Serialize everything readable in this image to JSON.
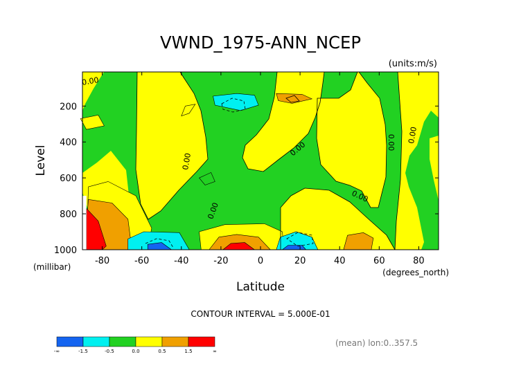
{
  "chart_data": {
    "type": "contour",
    "title": "VWND_1975-ANN_NCEP",
    "units": "(units:m/s)",
    "xlabel": "Latitude",
    "ylabel": "Level",
    "x_units": "(degrees_north)",
    "y_units": "(millibar)",
    "xlim": [
      -90,
      90
    ],
    "ylim": [
      1000,
      10
    ],
    "y_reversed": true,
    "x_ticks": [
      {
        "value": -80,
        "label": "-80"
      },
      {
        "value": -60,
        "label": "-60"
      },
      {
        "value": -40,
        "label": "-40"
      },
      {
        "value": -20,
        "label": "-20"
      },
      {
        "value": 0,
        "label": "0"
      },
      {
        "value": 20,
        "label": "20"
      },
      {
        "value": 40,
        "label": "40"
      },
      {
        "value": 60,
        "label": "60"
      },
      {
        "value": 80,
        "label": "80"
      }
    ],
    "y_ticks": [
      {
        "value": 200,
        "label": "200"
      },
      {
        "value": 400,
        "label": "400"
      },
      {
        "value": 600,
        "label": "600"
      },
      {
        "value": 800,
        "label": "800"
      },
      {
        "value": 1000,
        "label": "1000"
      }
    ],
    "contour_interval_text": "CONTOUR INTERVAL = 5.000E-01",
    "footer_text": "(mean) lon:0..357.5",
    "contour_label": "0.00",
    "colorbar": {
      "levels": [
        "-∞",
        "-1.5",
        "-0.5",
        "0.0",
        "0.5",
        "1.5",
        "∞"
      ],
      "colors": [
        "#1464f0",
        "#00f0f0",
        "#22d122",
        "#ffff00",
        "#f0a000",
        "#ff0000"
      ]
    },
    "regions": [
      {
        "level": "yellow",
        "points": [
          [
            -38,
            200
          ],
          [
            -33,
            190
          ],
          [
            -36,
            240
          ],
          [
            -40,
            255
          ]
        ]
      },
      {
        "level": "cyan",
        "points": [
          [
            -12,
            130
          ],
          [
            -24,
            145
          ],
          [
            -23,
            195
          ],
          [
            -10,
            225
          ],
          [
            -1,
            195
          ],
          [
            -3,
            140
          ]
        ]
      },
      {
        "level": "orange",
        "points": [
          [
            8,
            130
          ],
          [
            21,
            135
          ],
          [
            26,
            160
          ],
          [
            16,
            185
          ],
          [
            9,
            170
          ]
        ]
      },
      {
        "level": "yellow",
        "points": [
          [
            -91,
            270
          ],
          [
            -82,
            250
          ],
          [
            -79,
            310
          ],
          [
            -88,
            330
          ]
        ]
      },
      {
        "level": "yellow",
        "points": [
          [
            -87,
            650
          ],
          [
            -77,
            620
          ],
          [
            -63,
            700
          ],
          [
            -55,
            880
          ],
          [
            -57,
            1000
          ],
          [
            -88,
            1000
          ]
        ]
      },
      {
        "level": "orange",
        "points": [
          [
            -87,
            720
          ],
          [
            -75,
            740
          ],
          [
            -67,
            830
          ],
          [
            -65,
            1000
          ],
          [
            -89,
            1000
          ]
        ]
      },
      {
        "level": "red",
        "points": [
          [
            -88,
            770
          ],
          [
            -82,
            840
          ],
          [
            -78,
            980
          ],
          [
            -80,
            1000
          ],
          [
            -88,
            1000
          ]
        ]
      },
      {
        "level": "cyan",
        "points": [
          [
            -67,
            940
          ],
          [
            -59,
            900
          ],
          [
            -41,
            905
          ],
          [
            -36,
            1000
          ],
          [
            -67,
            1000
          ]
        ]
      },
      {
        "level": "blue",
        "points": [
          [
            -57,
            970
          ],
          [
            -50,
            960
          ],
          [
            -45,
            1000
          ],
          [
            -57,
            1000
          ]
        ]
      },
      {
        "level": "yellow",
        "points": [
          [
            -30,
            1000
          ],
          [
            -31,
            900
          ],
          [
            -18,
            860
          ],
          [
            2,
            855
          ],
          [
            11,
            900
          ],
          [
            12,
            1000
          ]
        ]
      },
      {
        "level": "orange",
        "points": [
          [
            -26,
            1000
          ],
          [
            -21,
            930
          ],
          [
            -12,
            915
          ],
          [
            -1,
            930
          ],
          [
            5,
            1000
          ]
        ]
      },
      {
        "level": "red",
        "points": [
          [
            -19,
            1000
          ],
          [
            -15,
            965
          ],
          [
            -8,
            960
          ],
          [
            -3,
            1000
          ]
        ]
      },
      {
        "level": "cyan",
        "points": [
          [
            8,
            1000
          ],
          [
            10,
            930
          ],
          [
            18,
            900
          ],
          [
            26,
            930
          ],
          [
            29,
            1000
          ]
        ]
      },
      {
        "level": "blue",
        "points": [
          [
            11,
            1000
          ],
          [
            14,
            975
          ],
          [
            21,
            975
          ],
          [
            23,
            1000
          ]
        ]
      },
      {
        "level": "orange",
        "points": [
          [
            42,
            1000
          ],
          [
            44,
            920
          ],
          [
            52,
            905
          ],
          [
            57,
            935
          ],
          [
            56,
            1000
          ]
        ]
      },
      {
        "level": "green",
        "points": [
          [
            -31,
            600
          ],
          [
            -25,
            570
          ],
          [
            -23,
            620
          ],
          [
            -28,
            640
          ]
        ]
      }
    ]
  }
}
